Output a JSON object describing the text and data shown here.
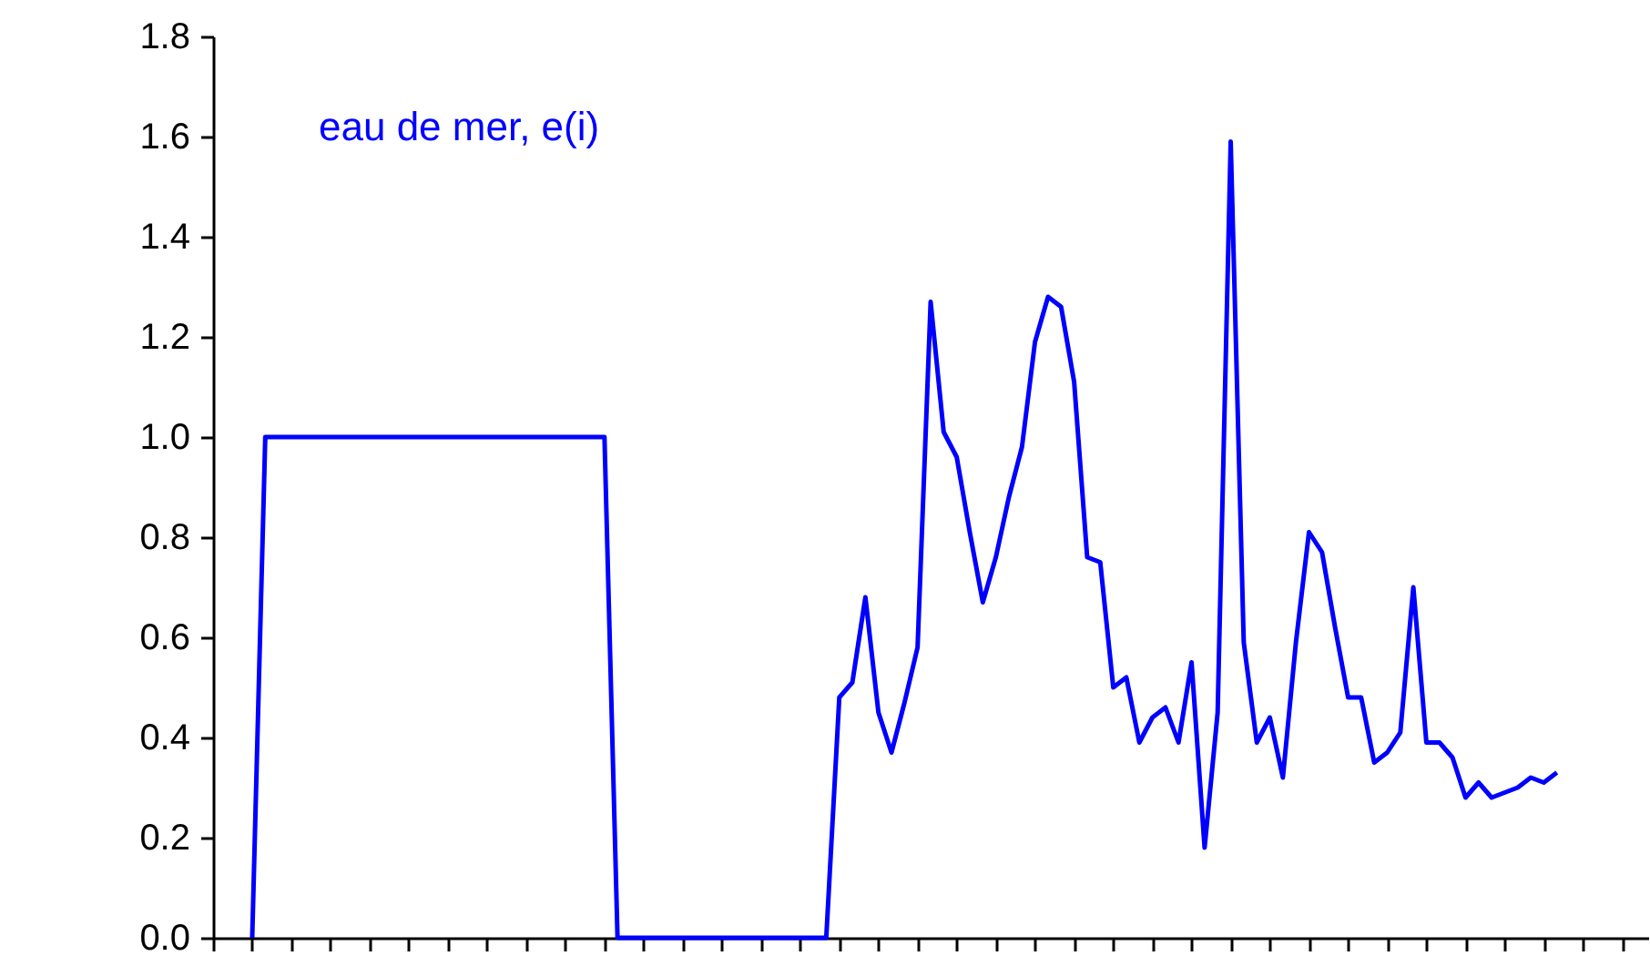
{
  "chart_data": {
    "type": "line",
    "tick_labels": "y",
    "grid": false,
    "legend": false,
    "marker": "none",
    "line_style": "solid",
    "categories": [
      null,
      null,
      null,
      null,
      null,
      null,
      null,
      null,
      null,
      null,
      null,
      null,
      null,
      null,
      null,
      null,
      null,
      null,
      null,
      null,
      null,
      null,
      null,
      null,
      null,
      null,
      null,
      null,
      null,
      null,
      null,
      null,
      null,
      null,
      null,
      null,
      null,
      null,
      null,
      null,
      null,
      null,
      null,
      null,
      null,
      null,
      null,
      null,
      null,
      null,
      null,
      null,
      null,
      null,
      null,
      null,
      null,
      null,
      null,
      null,
      null,
      null,
      null,
      null,
      null,
      null,
      null,
      null,
      null,
      null,
      null,
      null,
      null,
      null,
      null,
      null,
      null,
      null,
      null,
      null,
      null,
      null,
      null,
      null,
      null,
      null,
      null,
      null,
      null,
      null,
      null,
      null,
      null,
      null,
      null,
      null,
      null,
      null,
      null,
      null,
      null
    ],
    "ylim": [
      0,
      1.8
    ],
    "yticks": [
      {
        "value": 0,
        "label": "0.0"
      },
      {
        "value": 0.2,
        "label": "0.2"
      },
      {
        "value": 0.4,
        "label": "0.4"
      },
      {
        "value": 0.6,
        "label": "0.6"
      },
      {
        "value": 0.8,
        "label": "0.8"
      },
      {
        "value": 1,
        "label": "1.0"
      },
      {
        "value": 1.2,
        "label": "1.2"
      },
      {
        "value": 1.4,
        "label": "1.4"
      },
      {
        "value": 1.6,
        "label": "1.6"
      },
      {
        "value": 1.8,
        "label": "1.8"
      }
    ],
    "series": [
      {
        "name": "eau de mer, e(i)",
        "color": "#0000ff",
        "values": [
          0,
          1,
          1,
          1,
          1,
          1,
          1,
          1,
          1,
          1,
          1,
          1,
          1,
          1,
          1,
          1,
          1,
          1,
          1,
          1,
          1,
          1,
          1,
          1,
          1,
          1,
          1,
          1,
          0,
          0,
          0,
          0,
          0,
          0,
          0,
          0,
          0,
          0,
          0,
          0,
          0,
          0,
          0,
          0,
          0,
          0.48,
          0.51,
          0.68,
          0.45,
          0.37,
          0.47,
          0.58,
          1.27,
          1.01,
          0.96,
          0.81,
          0.67,
          0.76,
          0.88,
          0.98,
          1.19,
          1.28,
          1.26,
          1.11,
          0.76,
          0.75,
          0.5,
          0.52,
          0.39,
          0.44,
          0.46,
          0.39,
          0.55,
          0.18,
          0.45,
          1.59,
          0.59,
          0.39,
          0.44,
          0.32,
          0.59,
          0.81,
          0.77,
          0.62,
          0.48,
          0.48,
          0.35,
          0.37,
          0.41,
          0.7,
          0.39,
          0.39,
          0.36,
          0.28,
          0.31,
          0.28,
          0.29,
          0.3,
          0.32,
          0.31,
          0.33
        ]
      }
    ]
  }
}
